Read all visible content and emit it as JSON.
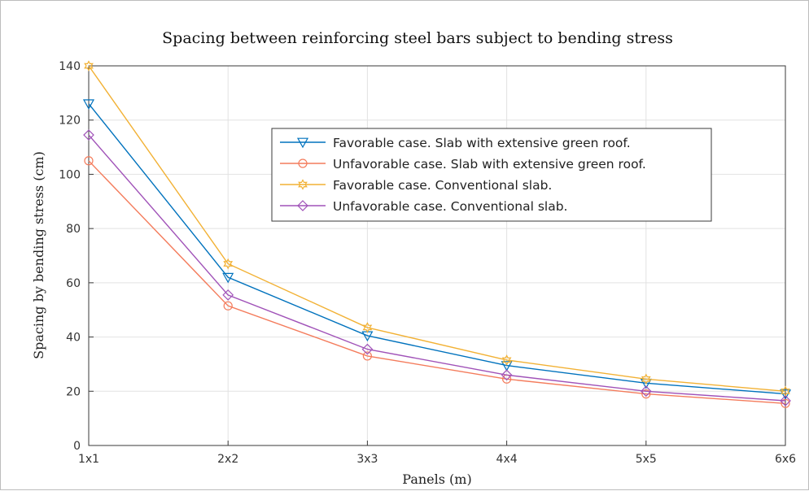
{
  "chart_data": {
    "type": "line",
    "title": "Spacing between reinforcing steel bars subject to bending stress",
    "xlabel": "Panels (m)",
    "ylabel": "Spacing by bending stress (cm)",
    "categories": [
      "1x1",
      "2x2",
      "3x3",
      "4x4",
      "5x5",
      "6x6"
    ],
    "ylim": [
      0,
      140
    ],
    "yticks": [
      0,
      20,
      40,
      60,
      80,
      100,
      120,
      140
    ],
    "grid": true,
    "legend_position": "upper-right",
    "series": [
      {
        "name": "Favorable case. Slab with extensive green roof.",
        "values": [
          126,
          62,
          40.5,
          29.5,
          23,
          19
        ],
        "color": "#0072bd",
        "marker": "triangle-down"
      },
      {
        "name": "Unfavorable case. Slab with extensive green roof.",
        "values": [
          105,
          51.5,
          33,
          24.5,
          19,
          15.5
        ],
        "color": "#f47c5c",
        "marker": "circle"
      },
      {
        "name": "Favorable case. Conventional slab.",
        "values": [
          140,
          67,
          43.5,
          31.5,
          24.5,
          20
        ],
        "color": "#f2b134",
        "marker": "hexagram"
      },
      {
        "name": "Unfavorable case. Conventional slab.",
        "values": [
          114.5,
          55.5,
          35.5,
          26,
          20,
          16.5
        ],
        "color": "#a052b8",
        "marker": "diamond"
      }
    ]
  }
}
